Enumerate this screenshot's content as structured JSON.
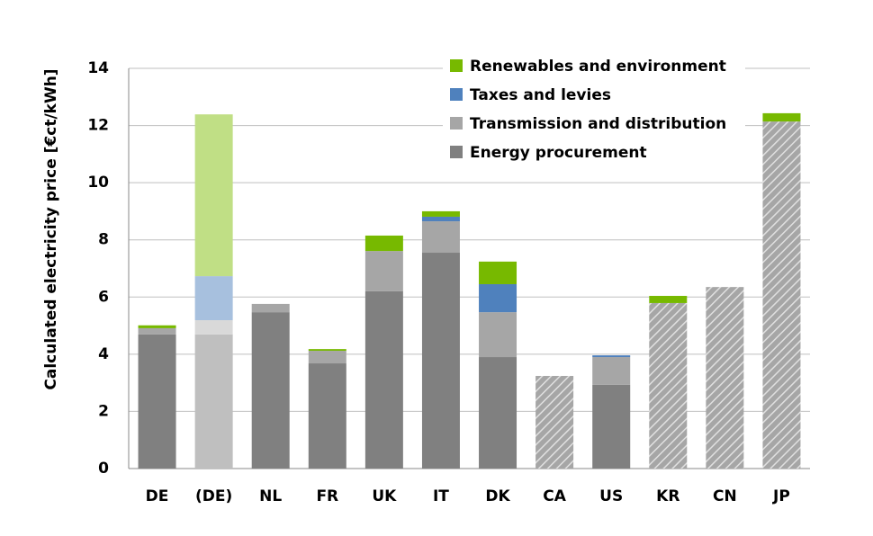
{
  "chart_data": {
    "type": "stacked_bar",
    "y_label": "Calculated electricity price [€ct/kWh]",
    "categories": [
      "DE",
      "(DE)",
      "NL",
      "FR",
      "UK",
      "IT",
      "DK",
      "CA",
      "US",
      "KR",
      "CN",
      "JP"
    ],
    "faded": [
      false,
      true,
      false,
      false,
      false,
      false,
      false,
      false,
      false,
      false,
      false,
      false
    ],
    "hatched": [
      false,
      false,
      false,
      false,
      false,
      false,
      false,
      true,
      false,
      true,
      true,
      true
    ],
    "series": [
      {
        "name": "Energy procurement",
        "color": "#808080",
        "faded_color": "#bfbfbf",
        "values": [
          4.69,
          4.69,
          5.47,
          3.68,
          6.2,
          7.55,
          3.9,
          3.24,
          2.93,
          5.79,
          6.35,
          12.14
        ]
      },
      {
        "name": "Transmission and distribution",
        "color": "#a6a6a6",
        "faded_color": "#d9d9d9",
        "values": [
          0.22,
          0.5,
          0.29,
          0.44,
          1.41,
          1.1,
          1.57,
          0,
          0.97,
          0,
          0,
          0
        ]
      },
      {
        "name": "Taxes and levies",
        "color": "#4f81bd",
        "faded_color": "#a7c0de",
        "values": [
          0,
          1.54,
          0,
          0,
          0,
          0.16,
          0.98,
          0,
          0.06,
          0,
          0,
          0
        ]
      },
      {
        "name": "Renewables and environment",
        "color": "#77b900",
        "faded_color": "#c0df85",
        "values": [
          0.1,
          5.66,
          0,
          0.06,
          0.54,
          0.19,
          0.79,
          0,
          0,
          0.25,
          0,
          0.29
        ]
      }
    ],
    "ylim": [
      0,
      14
    ],
    "yticks": [
      0,
      2,
      4,
      6,
      8,
      10,
      12,
      14
    ],
    "grid": true,
    "legend": "top-right"
  }
}
